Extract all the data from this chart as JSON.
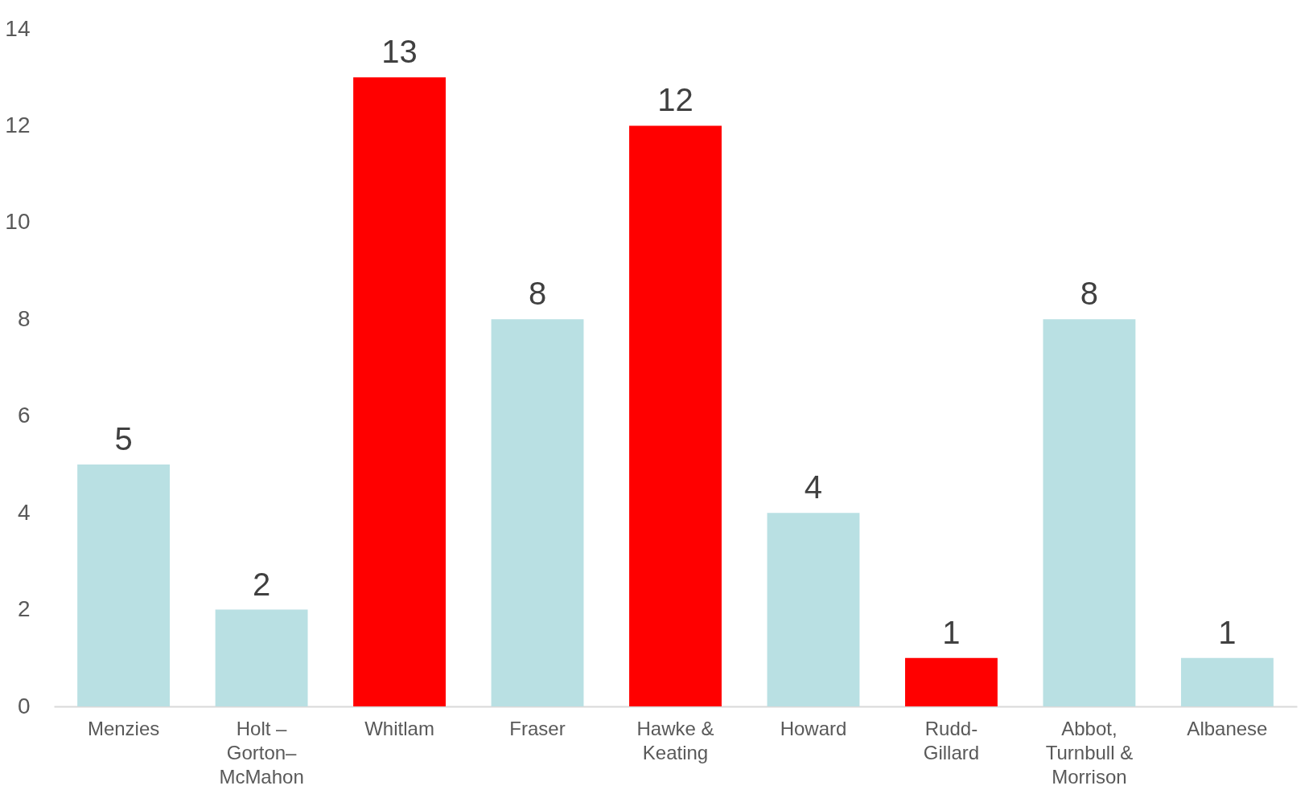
{
  "chart_data": {
    "type": "bar",
    "categories": [
      "Menzies",
      "Holt – Gorton–McMahon",
      "Whitlam",
      "Fraser",
      "Hawke & Keating",
      "Howard",
      "Rudd-Gillard",
      "Abbot, Turnbull & Morrison",
      "Albanese"
    ],
    "values": [
      5,
      2,
      13,
      8,
      12,
      4,
      1,
      8,
      1
    ],
    "colors": [
      "#b9e0e3",
      "#b9e0e3",
      "#ff0000",
      "#b9e0e3",
      "#ff0000",
      "#b9e0e3",
      "#ff0000",
      "#b9e0e3",
      "#b9e0e3"
    ],
    "ylim": [
      0,
      14
    ],
    "yticks": [
      0,
      2,
      4,
      6,
      8,
      10,
      12,
      14
    ],
    "data_labels": true,
    "grid": false
  }
}
